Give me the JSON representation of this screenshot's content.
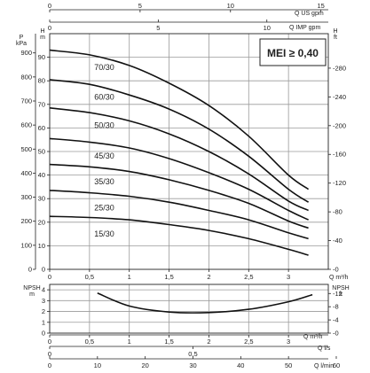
{
  "badge": {
    "mei": "MEI ≥ 0,40"
  },
  "chart_data": [
    {
      "type": "line",
      "title": "",
      "x": {
        "label": "Q m³/h",
        "range": [
          0,
          3.5
        ],
        "ticks": [
          0,
          0.5,
          1,
          1.5,
          2,
          2.5,
          3
        ],
        "tick_labels": [
          "0",
          "0,5",
          "1",
          "1,5",
          "2",
          "2,5",
          "3"
        ]
      },
      "x_top_1": {
        "label": "Q US gpm",
        "range": [
          0,
          15.41
        ],
        "ticks": [
          0,
          5,
          10,
          15
        ],
        "tick_labels": [
          "0",
          "5",
          "10",
          "15"
        ]
      },
      "x_top_2": {
        "label": "Q IMP gpm",
        "range": [
          0,
          12.83
        ],
        "ticks": [
          0,
          5,
          10
        ],
        "tick_labels": [
          "0",
          "5",
          "10"
        ]
      },
      "y_left_kpa": {
        "label": "P kPa",
        "range": [
          0,
          980
        ],
        "ticks": [
          0,
          100,
          200,
          300,
          400,
          500,
          600,
          700,
          800,
          900
        ],
        "tick_labels": [
          "0",
          "100",
          "200",
          "300",
          "400",
          "500",
          "600",
          "700",
          "800",
          "900"
        ]
      },
      "y_left_m": {
        "label": "H m",
        "range": [
          0,
          100
        ],
        "ticks": [
          0,
          10,
          20,
          30,
          40,
          50,
          60,
          70,
          80,
          90
        ],
        "tick_labels": [
          "0",
          "10",
          "20",
          "30",
          "40",
          "50",
          "60",
          "70",
          "80",
          "90"
        ]
      },
      "y_right_ft": {
        "label": "H ft",
        "range": [
          0,
          328
        ],
        "ticks": [
          0,
          40,
          80,
          120,
          160,
          200,
          240,
          280
        ],
        "tick_labels": [
          "0",
          "40",
          "80",
          "120",
          "160",
          "200",
          "240",
          "280"
        ]
      },
      "grid": true,
      "series": [
        {
          "name": "70/30",
          "x": [
            0,
            0.5,
            1,
            1.5,
            2,
            2.5,
            3,
            3.25
          ],
          "y": [
            93,
            91,
            86.5,
            79,
            69.5,
            56.5,
            40,
            34
          ]
        },
        {
          "name": "60/30",
          "x": [
            0,
            0.5,
            1,
            1.5,
            2,
            2.5,
            3,
            3.25
          ],
          "y": [
            80.5,
            78.5,
            74,
            68,
            59.5,
            48,
            34,
            28.5
          ]
        },
        {
          "name": "50/30",
          "x": [
            0,
            0.5,
            1,
            1.5,
            2,
            2.5,
            3,
            3.25
          ],
          "y": [
            68.5,
            66.5,
            63,
            57.5,
            50,
            40.5,
            29,
            25
          ]
        },
        {
          "name": "45/30",
          "x": [
            0,
            0.5,
            1,
            1.5,
            2,
            2.5,
            3,
            3.25
          ],
          "y": [
            55.5,
            54,
            51.5,
            47,
            41,
            34,
            25,
            21
          ]
        },
        {
          "name": "35/30",
          "x": [
            0,
            0.5,
            1,
            1.5,
            2,
            2.5,
            3,
            3.25
          ],
          "y": [
            44.5,
            43.5,
            41.5,
            38,
            33.5,
            28,
            20.5,
            17.5
          ]
        },
        {
          "name": "25/30",
          "x": [
            0,
            0.5,
            1,
            1.5,
            2,
            2.5,
            3,
            3.25
          ],
          "y": [
            33.5,
            32.5,
            31,
            28.5,
            25,
            21,
            15.5,
            13
          ]
        },
        {
          "name": "15/30",
          "x": [
            0,
            0.5,
            1,
            1.5,
            2,
            2.5,
            3,
            3.25
          ],
          "y": [
            22.5,
            22,
            21,
            19,
            16.5,
            13,
            8.5,
            6
          ]
        }
      ]
    },
    {
      "type": "line",
      "title": "",
      "x": {
        "label": "Q m³/h",
        "range": [
          0,
          3.5
        ],
        "ticks": [
          0,
          0.5,
          1,
          1.5,
          2,
          2.5,
          3
        ],
        "tick_labels": [
          "0",
          "0,5",
          "1",
          "1,5",
          "2",
          "2,5",
          "3"
        ]
      },
      "x_bottom_2": {
        "label": "Q l/s",
        "range": [
          0,
          0.972
        ],
        "ticks": [
          0,
          0.5
        ],
        "tick_labels": [
          "0",
          "0,5"
        ]
      },
      "x_bottom_3": {
        "label": "Q l/min",
        "range": [
          0,
          58.33
        ],
        "ticks": [
          0,
          10,
          20,
          30,
          40,
          50,
          60
        ],
        "tick_labels": [
          "0",
          "10",
          "20",
          "30",
          "40",
          "50",
          "60"
        ]
      },
      "y_left_m": {
        "label": "NPSH m",
        "range": [
          0,
          4.5
        ],
        "ticks": [
          0,
          1,
          2,
          3,
          4
        ],
        "tick_labels": [
          "0",
          "1",
          "2",
          "3",
          "4"
        ]
      },
      "y_right_ft": {
        "label": "NPSH ft",
        "range": [
          0,
          14.76
        ],
        "ticks": [
          0,
          4,
          8,
          12
        ],
        "tick_labels": [
          "0",
          "4",
          "8",
          "12"
        ]
      },
      "grid": true,
      "series": [
        {
          "name": "",
          "x": [
            0.6,
            1,
            1.5,
            2,
            2.5,
            3,
            3.3
          ],
          "y": [
            3.7,
            2.5,
            1.95,
            1.9,
            2.2,
            2.9,
            3.55
          ]
        }
      ]
    }
  ]
}
